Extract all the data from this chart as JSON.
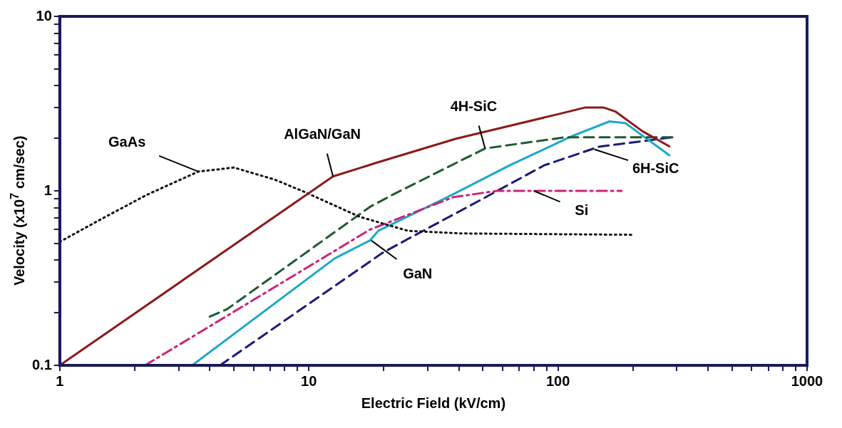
{
  "chart_data": {
    "type": "line",
    "xlabel": "Electric Field (kV/cm)",
    "ylabel": "Velocity (x10$^{7}$ cm/sec)",
    "log": "xy",
    "grid": false,
    "legend": false,
    "marker": "none",
    "xlim": [
      1,
      1000
    ],
    "xticks": [
      1,
      {
        "value": 2,
        "label": null
      },
      {
        "value": 3,
        "label": null
      },
      {
        "value": 4,
        "label": null
      },
      {
        "value": 5,
        "label": null
      },
      {
        "value": 6,
        "label": null
      },
      {
        "value": 7,
        "label": null
      },
      {
        "value": 8,
        "label": null
      },
      {
        "value": 9,
        "label": null
      },
      10,
      {
        "value": 20,
        "label": null
      },
      {
        "value": 30,
        "label": null
      },
      {
        "value": 40,
        "label": null
      },
      {
        "value": 50,
        "label": null
      },
      {
        "value": 60,
        "label": null
      },
      {
        "value": 70,
        "label": null
      },
      {
        "value": 80,
        "label": null
      },
      {
        "value": 90,
        "label": null
      },
      100,
      {
        "value": 200,
        "label": null
      },
      {
        "value": 300,
        "label": null
      },
      {
        "value": 400,
        "label": null
      },
      {
        "value": 500,
        "label": null
      },
      {
        "value": 600,
        "label": null
      },
      {
        "value": 700,
        "label": null
      },
      {
        "value": 800,
        "label": null
      },
      {
        "value": 900,
        "label": null
      },
      1000
    ],
    "ylim": [
      0.1,
      10
    ],
    "yticks": [
      0.1,
      {
        "value": 0.2,
        "label": null
      },
      {
        "value": 0.3,
        "label": null
      },
      {
        "value": 0.4,
        "label": null
      },
      {
        "value": 0.5,
        "label": null
      },
      {
        "value": 0.6,
        "label": null
      },
      {
        "value": 0.7,
        "label": null
      },
      {
        "value": 0.8,
        "label": null
      },
      {
        "value": 0.9,
        "label": null
      },
      1,
      {
        "value": 2,
        "label": null
      },
      {
        "value": 3,
        "label": null
      },
      {
        "value": 4,
        "label": null
      },
      {
        "value": 5,
        "label": null
      },
      {
        "value": 6,
        "label": null
      },
      {
        "value": 7,
        "label": null
      },
      {
        "value": 8,
        "label": null
      },
      {
        "value": 9,
        "label": null
      },
      10
    ],
    "series": [
      {
        "color": "#8b1a1a",
        "line_style": "solid",
        "x": [
          1,
          12.5,
          19,
          39,
          100,
          128,
          153,
          170,
          218,
          280
        ],
        "values": [
          0.1,
          1.21,
          1.46,
          1.99,
          2.75,
          3.0,
          3.0,
          2.85,
          2.2,
          1.8
        ]
      },
      {
        "color": "#111111",
        "line_style": "dotted",
        "x": [
          1,
          1.47,
          2.24,
          3.6,
          5,
          7.3,
          9.7,
          16,
          25,
          41,
          200
        ],
        "values": [
          0.51,
          0.69,
          0.95,
          1.29,
          1.36,
          1.16,
          0.98,
          0.71,
          0.59,
          0.57,
          0.56
        ]
      },
      {
        "color": "#1e5a32",
        "line_style": "dashed",
        "x": [
          4,
          4.7,
          17.6,
          22,
          51,
          107,
          290
        ],
        "values": [
          0.19,
          0.21,
          0.81,
          0.96,
          1.75,
          2.03,
          2.03
        ]
      },
      {
        "color": "#cc2277",
        "line_style": "dashdot",
        "x": [
          2.2,
          17.6,
          38,
          57,
          180
        ],
        "values": [
          0.1,
          0.6,
          0.92,
          1.0,
          1.0
        ]
      },
      {
        "color": "#1aa8c8",
        "line_style": "solid",
        "x": [
          3.4,
          12.7,
          17.6,
          19,
          36,
          64,
          113,
          161,
          187,
          280
        ],
        "values": [
          0.1,
          0.41,
          0.52,
          0.59,
          0.92,
          1.4,
          2.05,
          2.5,
          2.44,
          1.6
        ]
      },
      {
        "color": "#1a1a7a",
        "line_style": "dashed",
        "x": [
          4.4,
          19.7,
          25,
          47,
          88,
          146,
          290
        ],
        "values": [
          0.1,
          0.44,
          0.53,
          0.86,
          1.4,
          1.79,
          2.03
        ]
      }
    ],
    "annotations": [
      {
        "text": "AlGaN/GaN",
        "x": 12.5,
        "y": 1.21
      },
      {
        "text": "GaAs",
        "x": 3.6,
        "y": 1.29
      },
      {
        "text": "4H-SiC",
        "x": 51,
        "y": 1.75
      },
      {
        "text": "Si",
        "x": 80,
        "y": 1.0
      },
      {
        "text": "GaN",
        "x": 17.8,
        "y": 0.52
      },
      {
        "text": "6H-SiC",
        "x": 140,
        "y": 1.73
      }
    ]
  }
}
